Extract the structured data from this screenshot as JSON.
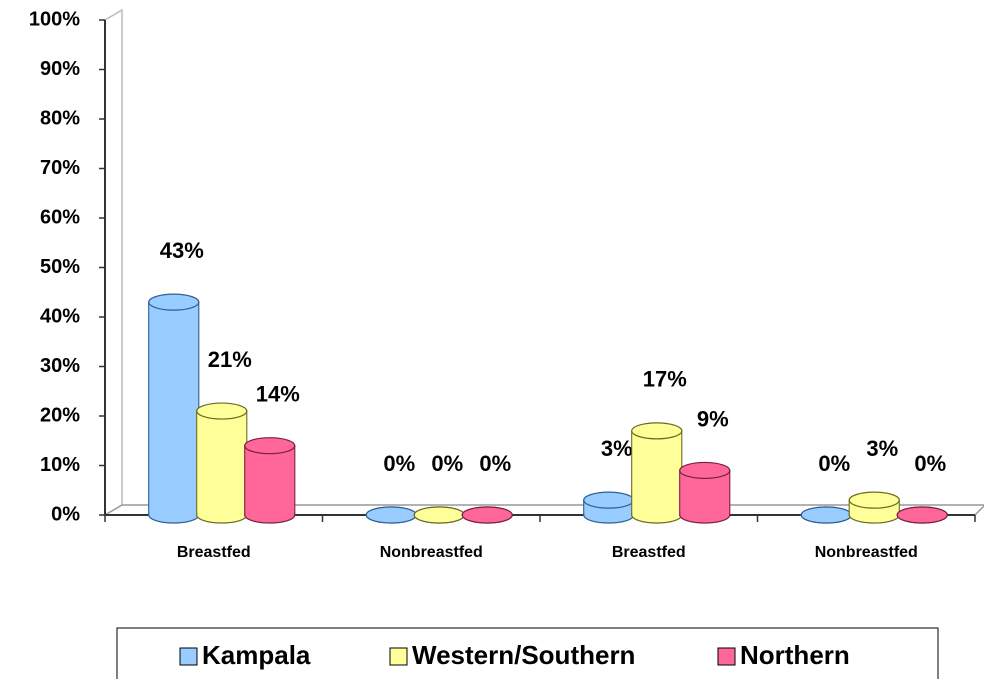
{
  "chart_data": {
    "type": "bar",
    "categories": [
      "Breastfed",
      "Nonbreastfed",
      "Breastfed",
      "Nonbreastfed"
    ],
    "series": [
      {
        "name": "Kampala",
        "color": "#99ccff",
        "values": [
          43,
          0,
          3,
          0
        ],
        "value_labels": [
          "43%",
          "0%",
          "3%",
          "0%"
        ]
      },
      {
        "name": "Western/Southern",
        "color": "#ffff99",
        "values": [
          21,
          0,
          17,
          3
        ],
        "value_labels": [
          "21%",
          "0%",
          "17%",
          "3%"
        ]
      },
      {
        "name": "Northern",
        "color": "#ff6699",
        "values": [
          14,
          0,
          9,
          0
        ],
        "value_labels": [
          "14%",
          "0%",
          "9%",
          "0%"
        ]
      }
    ],
    "ylim": [
      0,
      100
    ],
    "yticks": [
      {
        "value": 0,
        "label": "0%"
      },
      {
        "value": 10,
        "label": "10%"
      },
      {
        "value": 20,
        "label": "20%"
      },
      {
        "value": 30,
        "label": "30%"
      },
      {
        "value": 40,
        "label": "40%"
      },
      {
        "value": 50,
        "label": "50%"
      },
      {
        "value": 60,
        "label": "60%"
      },
      {
        "value": 70,
        "label": "70%"
      },
      {
        "value": 80,
        "label": "80%"
      },
      {
        "value": 90,
        "label": "90%"
      },
      {
        "value": 100,
        "label": "100%"
      }
    ],
    "legend": "bottom"
  }
}
